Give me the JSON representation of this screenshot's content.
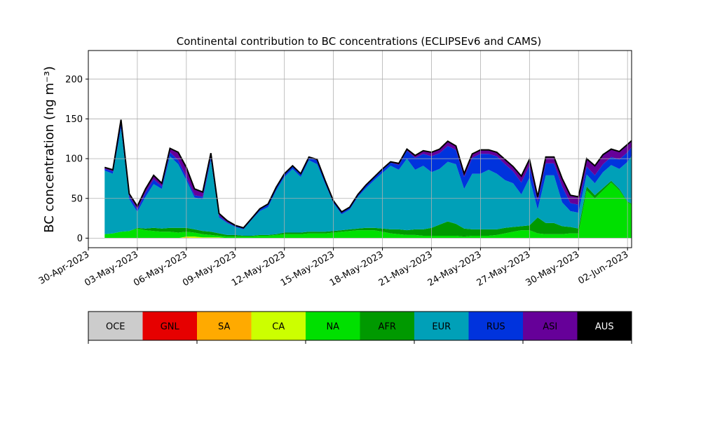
{
  "chart_data": {
    "type": "area",
    "stacked": true,
    "title": "Continental contribution to BC concentrations (ECLIPSEv6 and CAMS)",
    "ylabel": "BC concentration (ng m⁻³)",
    "xlabel": "",
    "grid": true,
    "x_start": "2023-05-01",
    "x_step_days": 0.5,
    "xlim": [
      "2023-04-30T00:00",
      "2023-06-02T06:00"
    ],
    "ylim": [
      -12,
      236
    ],
    "xticks": [
      "30-Apr-2023",
      "03-May-2023",
      "06-May-2023",
      "09-May-2023",
      "12-May-2023",
      "15-May-2023",
      "18-May-2023",
      "21-May-2023",
      "24-May-2023",
      "27-May-2023",
      "30-May-2023",
      "02-Jun-2023"
    ],
    "yticks": [
      0,
      50,
      100,
      150,
      200
    ],
    "legend_placement": "below",
    "legend": [
      {
        "key": "OCE",
        "color": "#cccccc"
      },
      {
        "key": "GNL",
        "color": "#e60000"
      },
      {
        "key": "SA",
        "color": "#ffaa00"
      },
      {
        "key": "CA",
        "color": "#ccff00"
      },
      {
        "key": "NA",
        "color": "#00e000"
      },
      {
        "key": "AFR",
        "color": "#009900"
      },
      {
        "key": "EUR",
        "color": "#00a0b8"
      },
      {
        "key": "RUS",
        "color": "#0033dd"
      },
      {
        "key": "ASI",
        "color": "#660099"
      },
      {
        "key": "AUS",
        "color": "#000000"
      }
    ],
    "total_line_color": "#000000",
    "series": [
      {
        "name": "OCE",
        "color": "#cccccc",
        "values": [
          0,
          0,
          0,
          0,
          0,
          0,
          0,
          0,
          0,
          0,
          0,
          0,
          0,
          0,
          0,
          0,
          0,
          0,
          0,
          0,
          0,
          0,
          0,
          0,
          0,
          0,
          0,
          0,
          0,
          0,
          0,
          0,
          0,
          0,
          0,
          0,
          0,
          0,
          0,
          0,
          0,
          0,
          0,
          0,
          0,
          0,
          0,
          0,
          0,
          0,
          0,
          0,
          0,
          0,
          0,
          0,
          0,
          0,
          0,
          0,
          0,
          0,
          0,
          0,
          0,
          0
        ]
      },
      {
        "name": "GNL",
        "color": "#e60000",
        "values": [
          0,
          0,
          0,
          0,
          0,
          0,
          0,
          0,
          0,
          0,
          0,
          0,
          0,
          0,
          0,
          0,
          0,
          0,
          0,
          0,
          0,
          0,
          0,
          0,
          0,
          0,
          0,
          0,
          0,
          0,
          0,
          0,
          0,
          0,
          0,
          0,
          0,
          0,
          0,
          0,
          0,
          0,
          0,
          0,
          0,
          0,
          0,
          0,
          0,
          0,
          0,
          0,
          0,
          0,
          0,
          0,
          0,
          0,
          0,
          0,
          0,
          0,
          0,
          0,
          0,
          0
        ]
      },
      {
        "name": "SA",
        "color": "#ffaa00",
        "values": [
          0,
          0,
          0,
          0,
          0,
          0,
          0,
          0,
          0,
          0,
          1,
          0,
          0,
          0,
          0,
          0,
          0,
          0,
          0,
          0,
          0,
          0,
          0,
          0,
          0,
          0,
          0,
          0,
          0,
          0,
          0,
          0,
          0,
          0,
          0,
          0,
          0,
          0,
          0,
          0,
          0,
          0,
          0,
          0,
          0,
          0,
          0,
          0,
          0,
          0,
          0,
          0,
          0,
          0,
          0,
          0,
          0,
          0,
          0,
          0,
          0,
          0,
          0,
          0,
          0,
          0
        ]
      },
      {
        "name": "CA",
        "color": "#ccff00",
        "values": [
          0,
          0,
          0,
          0,
          0,
          0,
          0,
          0,
          0,
          0,
          1,
          2,
          1,
          1,
          1,
          0,
          0,
          0,
          0,
          0,
          0,
          0,
          0,
          0,
          0,
          0,
          0,
          0,
          0,
          0,
          0,
          0,
          0,
          0,
          0,
          0,
          0,
          0,
          0,
          0,
          0,
          0,
          0,
          0,
          0,
          0,
          0,
          0,
          0,
          0,
          0,
          0,
          0,
          0,
          0,
          0,
          0,
          0,
          0,
          0,
          0,
          0,
          0,
          0,
          0,
          0
        ]
      },
      {
        "name": "NA",
        "color": "#00e000",
        "values": [
          5,
          6,
          8,
          9,
          12,
          10,
          9,
          8,
          8,
          7,
          6,
          5,
          4,
          3,
          2,
          2,
          2,
          2,
          2,
          3,
          3,
          4,
          5,
          5,
          5,
          6,
          6,
          6,
          7,
          8,
          9,
          10,
          10,
          10,
          8,
          6,
          5,
          4,
          4,
          3,
          3,
          3,
          3,
          3,
          2,
          3,
          3,
          3,
          4,
          6,
          8,
          10,
          10,
          6,
          5,
          5,
          5,
          6,
          6,
          60,
          50,
          60,
          70,
          60,
          45,
          40
        ]
      },
      {
        "name": "AFR",
        "color": "#009900",
        "values": [
          0,
          0,
          0,
          0,
          1,
          2,
          4,
          4,
          5,
          6,
          5,
          4,
          4,
          4,
          3,
          2,
          2,
          1,
          1,
          1,
          1,
          1,
          2,
          2,
          2,
          2,
          2,
          2,
          2,
          2,
          2,
          2,
          3,
          3,
          4,
          5,
          6,
          6,
          7,
          8,
          10,
          14,
          18,
          15,
          10,
          8,
          8,
          8,
          7,
          7,
          6,
          5,
          6,
          20,
          14,
          14,
          10,
          8,
          6,
          5,
          4,
          3,
          2,
          2,
          1,
          1
        ]
      },
      {
        "name": "EUR",
        "color": "#00a0b8",
        "values": [
          80,
          75,
          130,
          40,
          20,
          40,
          55,
          50,
          90,
          80,
          60,
          40,
          40,
          90,
          20,
          15,
          10,
          8,
          20,
          30,
          35,
          55,
          70,
          80,
          70,
          90,
          85,
          60,
          35,
          20,
          25,
          40,
          50,
          60,
          70,
          80,
          75,
          90,
          75,
          80,
          70,
          70,
          75,
          75,
          50,
          70,
          70,
          75,
          70,
          60,
          55,
          40,
          60,
          10,
          60,
          60,
          30,
          20,
          20,
          15,
          15,
          20,
          20,
          25,
          50,
          70
        ]
      },
      {
        "name": "RUS",
        "color": "#0033dd",
        "values": [
          2,
          3,
          8,
          4,
          3,
          5,
          6,
          3,
          5,
          5,
          4,
          3,
          3,
          4,
          2,
          1,
          1,
          1,
          1,
          2,
          3,
          3,
          3,
          3,
          3,
          3,
          5,
          3,
          2,
          2,
          2,
          2,
          3,
          3,
          4,
          4,
          6,
          10,
          15,
          15,
          20,
          20,
          20,
          18,
          15,
          20,
          25,
          20,
          22,
          20,
          15,
          15,
          15,
          10,
          15,
          15,
          20,
          10,
          10,
          10,
          10,
          10,
          10,
          12,
          12,
          10
        ]
      },
      {
        "name": "ASI",
        "color": "#660099",
        "values": [
          2,
          2,
          3,
          3,
          4,
          5,
          5,
          4,
          5,
          10,
          12,
          8,
          6,
          5,
          3,
          2,
          1,
          1,
          1,
          1,
          1,
          1,
          1,
          1,
          1,
          1,
          1,
          1,
          1,
          1,
          1,
          1,
          1,
          1,
          1,
          1,
          2,
          2,
          3,
          4,
          5,
          5,
          6,
          5,
          4,
          5,
          5,
          5,
          5,
          6,
          6,
          8,
          8,
          6,
          8,
          8,
          10,
          10,
          10,
          10,
          12,
          12,
          10,
          10,
          10,
          6
        ]
      },
      {
        "name": "AUS",
        "color": "#000000",
        "values": [
          0,
          0,
          0,
          0,
          0,
          0,
          0,
          0,
          0,
          0,
          0,
          0,
          0,
          0,
          0,
          0,
          0,
          0,
          0,
          0,
          0,
          0,
          0,
          0,
          0,
          0,
          0,
          0,
          0,
          0,
          0,
          0,
          0,
          0,
          0,
          0,
          0,
          0,
          0,
          0,
          0,
          0,
          0,
          0,
          0,
          0,
          0,
          0,
          0,
          0,
          0,
          0,
          0,
          0,
          0,
          0,
          0,
          0,
          0,
          0,
          0,
          0,
          0,
          0,
          0,
          0
        ]
      }
    ]
  }
}
